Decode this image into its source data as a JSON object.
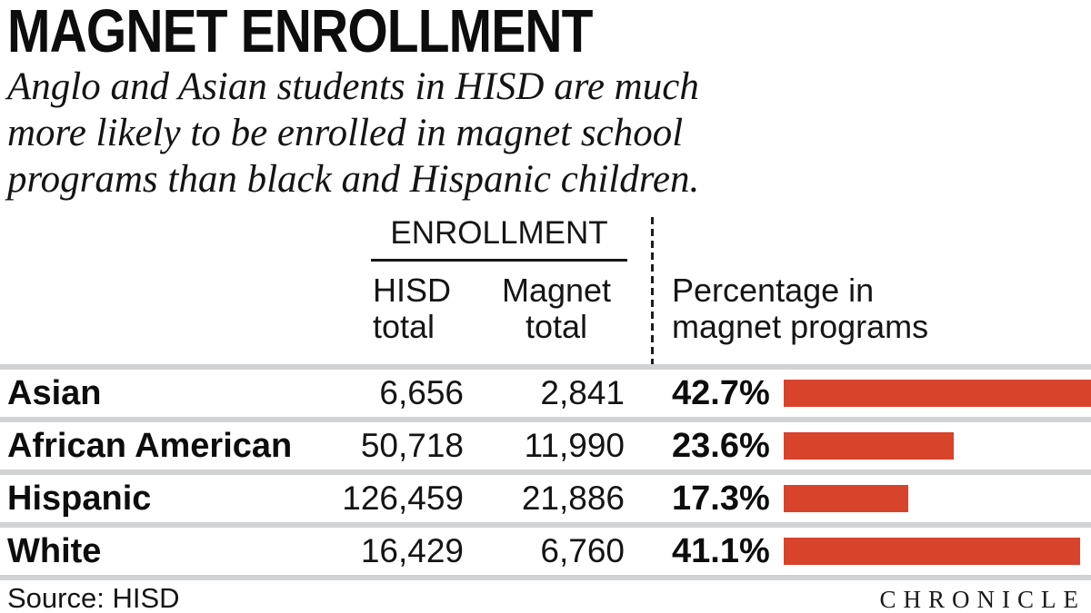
{
  "header": {
    "title": "MAGNET ENROLLMENT",
    "subtitle": "Anglo and Asian students in HISD are much\nmore likely to be enrolled in magnet school\nprograms than black and Hispanic children."
  },
  "table": {
    "group_header": "ENROLLMENT",
    "col_hisd_total": "HISD\ntotal",
    "col_magnet_total": "Magnet\ntotal",
    "col_percentage": "Percentage in\nmagnet programs"
  },
  "rows": [
    {
      "label": "Asian",
      "hisd_total": "6,656",
      "magnet_total": "2,841",
      "pct_label": "42.7%",
      "pct": 42.7
    },
    {
      "label": "African American",
      "hisd_total": "50,718",
      "magnet_total": "11,990",
      "pct_label": "23.6%",
      "pct": 23.6
    },
    {
      "label": "Hispanic",
      "hisd_total": "126,459",
      "magnet_total": "21,886",
      "pct_label": "17.3%",
      "pct": 17.3
    },
    {
      "label": "White",
      "hisd_total": "16,429",
      "magnet_total": "6,760",
      "pct_label": "41.1%",
      "pct": 41.1
    }
  ],
  "chart_data": {
    "type": "bar",
    "title": "MAGNET ENROLLMENT",
    "subtitle": "Anglo and Asian students in HISD are much more likely to be enrolled in magnet school programs than black and Hispanic children.",
    "categories": [
      "Asian",
      "African American",
      "Hispanic",
      "White"
    ],
    "series": [
      {
        "name": "HISD total",
        "values": [
          6656,
          50718,
          126459,
          16429
        ]
      },
      {
        "name": "Magnet total",
        "values": [
          2841,
          11990,
          21886,
          6760
        ]
      },
      {
        "name": "Percentage in magnet programs",
        "values": [
          42.7,
          23.6,
          17.3,
          41.1
        ]
      }
    ],
    "bar_series": "Percentage in magnet programs",
    "bar_orientation": "horizontal",
    "xlim": [
      0,
      42.7
    ],
    "grid": false,
    "legend_position": "none",
    "source": "HISD"
  },
  "footer": {
    "source": "Source: HISD",
    "brand": "CHRONICLE"
  },
  "colors": {
    "bar": "#d8432c",
    "separator": "#d1d2d4",
    "text": "#111111"
  }
}
